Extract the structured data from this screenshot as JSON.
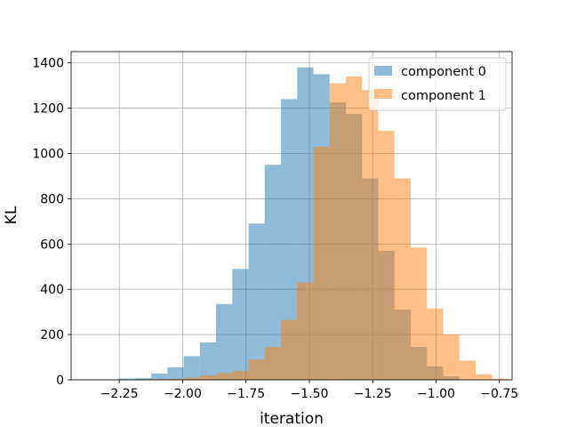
{
  "chart_data": {
    "type": "bar",
    "subtype": "overlapping histogram",
    "title": "",
    "xlabel": "iteration",
    "ylabel": "KL",
    "xlim": [
      -2.44,
      -0.7
    ],
    "ylim": [
      0,
      1450
    ],
    "xticks": [
      -2.25,
      -2.0,
      -1.75,
      -1.5,
      -1.25,
      -1.0,
      -0.75
    ],
    "xtick_labels": [
      "−2.25",
      "−2.00",
      "−1.75",
      "−1.50",
      "−1.25",
      "−1.00",
      "−0.75"
    ],
    "yticks": [
      0,
      200,
      400,
      600,
      800,
      1000,
      1200,
      1400
    ],
    "ytick_labels": [
      "0",
      "200",
      "400",
      "600",
      "800",
      "1000",
      "1200",
      "1400"
    ],
    "grid": true,
    "legend_position": "top-right",
    "series": [
      {
        "name": "component 0",
        "color": "#1f77b4",
        "alpha": 0.5,
        "bins": [
          {
            "x0": -2.38,
            "x1": -2.316,
            "count": 1
          },
          {
            "x0": -2.316,
            "x1": -2.252,
            "count": 2
          },
          {
            "x0": -2.252,
            "x1": -2.188,
            "count": 6
          },
          {
            "x0": -2.188,
            "x1": -2.124,
            "count": 8
          },
          {
            "x0": -2.124,
            "x1": -2.06,
            "count": 28
          },
          {
            "x0": -2.06,
            "x1": -1.996,
            "count": 55
          },
          {
            "x0": -1.996,
            "x1": -1.932,
            "count": 105
          },
          {
            "x0": -1.932,
            "x1": -1.868,
            "count": 165
          },
          {
            "x0": -1.868,
            "x1": -1.804,
            "count": 335
          },
          {
            "x0": -1.804,
            "x1": -1.74,
            "count": 490
          },
          {
            "x0": -1.74,
            "x1": -1.676,
            "count": 690
          },
          {
            "x0": -1.676,
            "x1": -1.612,
            "count": 950
          },
          {
            "x0": -1.612,
            "x1": -1.548,
            "count": 1240
          },
          {
            "x0": -1.548,
            "x1": -1.484,
            "count": 1380
          },
          {
            "x0": -1.484,
            "x1": -1.42,
            "count": 1350
          },
          {
            "x0": -1.42,
            "x1": -1.356,
            "count": 1225
          },
          {
            "x0": -1.356,
            "x1": -1.292,
            "count": 1175
          },
          {
            "x0": -1.292,
            "x1": -1.228,
            "count": 890
          },
          {
            "x0": -1.228,
            "x1": -1.164,
            "count": 570
          },
          {
            "x0": -1.164,
            "x1": -1.1,
            "count": 310
          },
          {
            "x0": -1.1,
            "x1": -1.036,
            "count": 145
          },
          {
            "x0": -1.036,
            "x1": -0.972,
            "count": 60
          },
          {
            "x0": -0.972,
            "x1": -0.908,
            "count": 15
          }
        ]
      },
      {
        "name": "component 1",
        "color": "#ff7f0e",
        "alpha": 0.5,
        "bins": [
          {
            "x0": -2.316,
            "x1": -2.252,
            "count": 1
          },
          {
            "x0": -2.252,
            "x1": -2.188,
            "count": 1
          },
          {
            "x0": -2.188,
            "x1": -2.124,
            "count": 2
          },
          {
            "x0": -2.124,
            "x1": -2.06,
            "count": 3
          },
          {
            "x0": -2.06,
            "x1": -1.996,
            "count": 5
          },
          {
            "x0": -1.996,
            "x1": -1.932,
            "count": 10
          },
          {
            "x0": -1.932,
            "x1": -1.868,
            "count": 20
          },
          {
            "x0": -1.868,
            "x1": -1.804,
            "count": 30
          },
          {
            "x0": -1.804,
            "x1": -1.74,
            "count": 40
          },
          {
            "x0": -1.74,
            "x1": -1.676,
            "count": 90
          },
          {
            "x0": -1.676,
            "x1": -1.612,
            "count": 145
          },
          {
            "x0": -1.612,
            "x1": -1.548,
            "count": 265
          },
          {
            "x0": -1.548,
            "x1": -1.484,
            "count": 430
          },
          {
            "x0": -1.484,
            "x1": -1.42,
            "count": 1030
          },
          {
            "x0": -1.42,
            "x1": -1.356,
            "count": 1310
          },
          {
            "x0": -1.356,
            "x1": -1.292,
            "count": 1340
          },
          {
            "x0": -1.292,
            "x1": -1.228,
            "count": 1280
          },
          {
            "x0": -1.228,
            "x1": -1.164,
            "count": 1100
          },
          {
            "x0": -1.164,
            "x1": -1.1,
            "count": 890
          },
          {
            "x0": -1.1,
            "x1": -1.036,
            "count": 585
          },
          {
            "x0": -1.036,
            "x1": -0.972,
            "count": 315
          },
          {
            "x0": -0.972,
            "x1": -0.908,
            "count": 200
          },
          {
            "x0": -0.908,
            "x1": -0.844,
            "count": 85
          },
          {
            "x0": -0.844,
            "x1": -0.78,
            "count": 25
          },
          {
            "x0": -0.78,
            "x1": -0.716,
            "count": 5
          }
        ]
      }
    ]
  }
}
